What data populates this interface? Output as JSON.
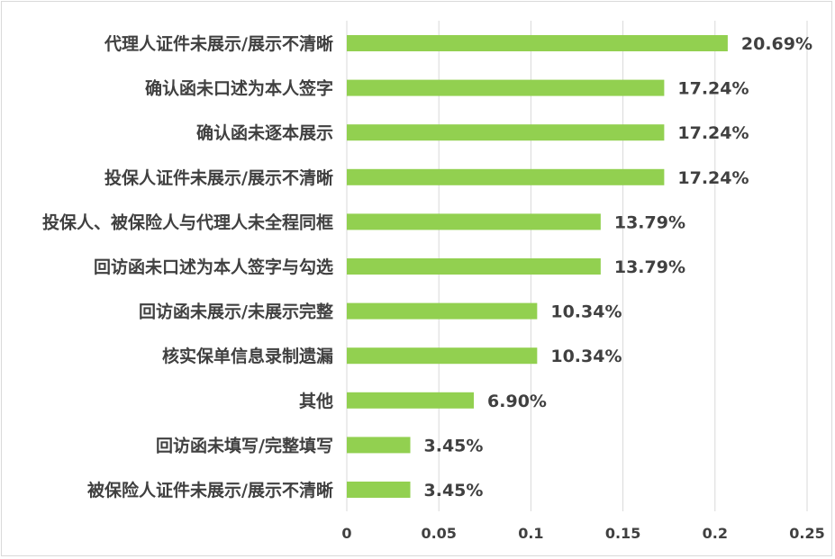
{
  "chart_data": {
    "type": "bar",
    "orientation": "horizontal",
    "categories": [
      "代理人证件未展示/展示不清晰",
      "确认函未口述为本人签字",
      "确认函未逐本展示",
      "投保人证件未展示/展示不清晰",
      "投保人、被保险人与代理人未全程同框",
      "回访函未口述为本人签字与勾选",
      "回访函未展示/未展示完整",
      "核实保单信息录制遗漏",
      "其他",
      "回访函未填写/完整填写",
      "被保险人证件未展示/展示不清晰"
    ],
    "values": [
      0.2069,
      0.1724,
      0.1724,
      0.1724,
      0.1379,
      0.1379,
      0.1034,
      0.1034,
      0.069,
      0.0345,
      0.0345
    ],
    "data_labels": [
      "20.69%",
      "17.24%",
      "17.24%",
      "17.24%",
      "13.79%",
      "13.79%",
      "10.34%",
      "10.34%",
      "6.90%",
      "3.45%",
      "3.45%"
    ],
    "x_ticks": [
      "0",
      "0.05",
      "0.1",
      "0.15",
      "0.2",
      "0.25"
    ],
    "xlim": [
      0,
      0.25
    ],
    "title": "",
    "xlabel": "",
    "ylabel": "",
    "grid": "vertical",
    "legend": "none",
    "colors": {
      "bar": "#92d050",
      "grid": "#d9d9d9",
      "text": "#404040"
    }
  }
}
